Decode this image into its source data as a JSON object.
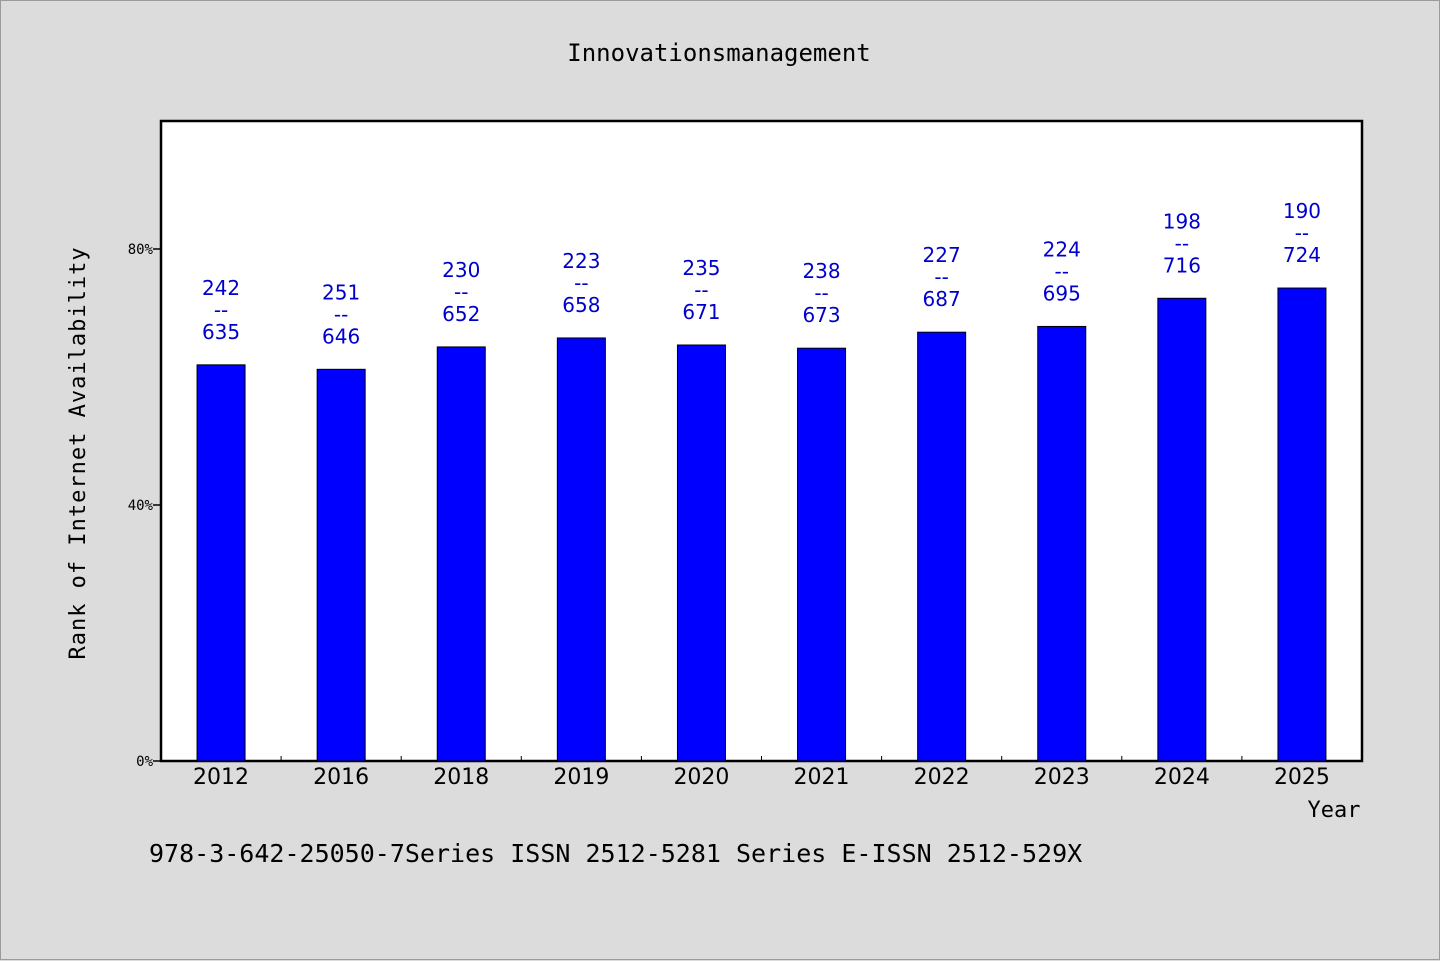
{
  "chart_data": {
    "type": "bar",
    "title": "Innovationsmanagement",
    "xlabel": "Year",
    "ylabel": "Rank of Internet Availability",
    "categories": [
      "2012",
      "2016",
      "2018",
      "2019",
      "2020",
      "2021",
      "2022",
      "2023",
      "2024",
      "2025"
    ],
    "values": [
      0.619,
      0.612,
      0.647,
      0.661,
      0.65,
      0.645,
      0.67,
      0.679,
      0.723,
      0.739
    ],
    "value_unit": "fraction",
    "labels_top": [
      "242",
      "251",
      "230",
      "223",
      "235",
      "238",
      "227",
      "224",
      "198",
      "190"
    ],
    "labels_separator": "--",
    "labels_bottom": [
      "635",
      "646",
      "652",
      "658",
      "671",
      "673",
      "687",
      "695",
      "716",
      "724"
    ],
    "ylim": [
      0,
      1.0
    ],
    "yticks": [
      {
        "value": 0,
        "label": "0%"
      },
      {
        "value": 0.4,
        "label": "40%"
      },
      {
        "value": 0.8,
        "label": "80%"
      }
    ],
    "bar_color": "#0000ff",
    "label_color": "#0000cc",
    "grid": false,
    "legend": "none"
  },
  "footnote": "978-3-642-25050-7Series ISSN 2512-5281 Series E-ISSN 2512-529X"
}
